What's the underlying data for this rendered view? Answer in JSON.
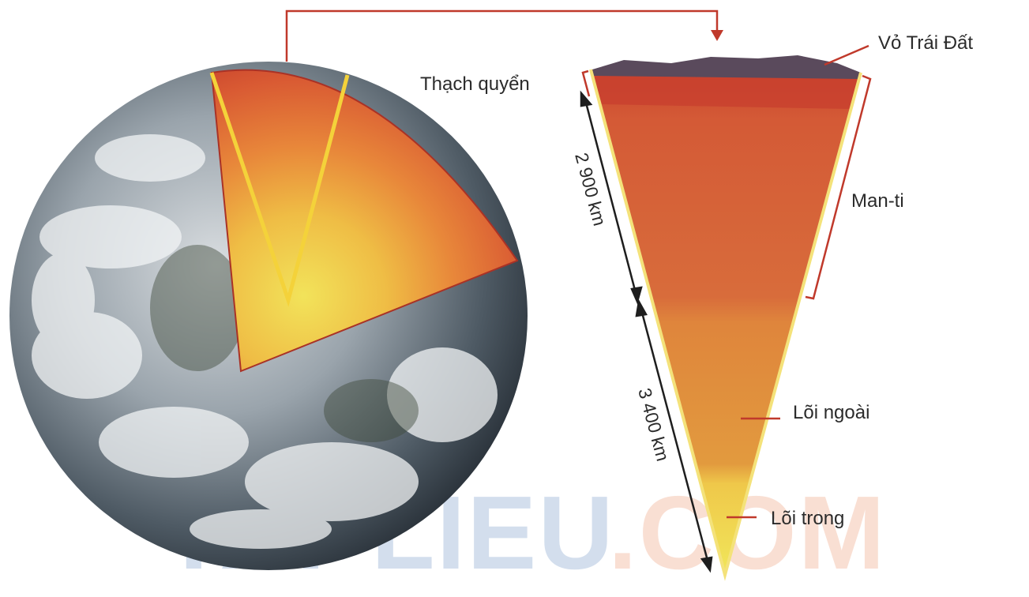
{
  "labels": {
    "crust": "Vỏ Trái Đất",
    "lithosphere": "Thạch quyển",
    "mantle": "Man-ti",
    "outer_core": "Lõi ngoài",
    "inner_core": "Lõi trong"
  },
  "dimensions": {
    "mantle_depth": "2 900 km",
    "core_radius": "3 400 km"
  },
  "watermark": {
    "part1": "TAI",
    "part2": "LIEU",
    "part3": ".COM"
  },
  "colors": {
    "crust": "#5a4a5c",
    "lithosphere": "#c8402e",
    "mantle_upper": "#d7663a",
    "mantle_lower": "#dc7a3e",
    "outer_core": "#e08a3c",
    "inner_core": "#eed84a",
    "leader": "#c0392b",
    "bracket": "#c0392b",
    "cut_line": "#f4d23a"
  }
}
